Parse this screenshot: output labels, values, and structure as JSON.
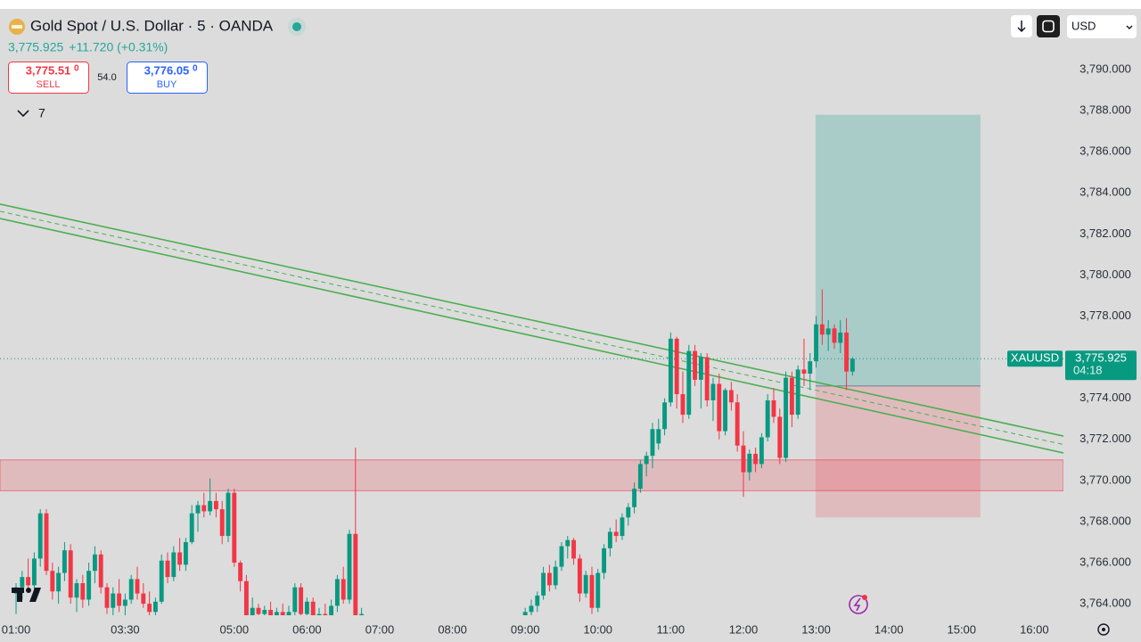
{
  "header": {
    "symbol": "Gold Spot / U.S. Dollar · 5 · OANDA",
    "price": "3,775.925",
    "change": "+11.720 (+0.31%)",
    "sell": {
      "price": "3,775.51",
      "pip": "0",
      "label": "SELL"
    },
    "spread": "54.0",
    "buy": {
      "price": "3,776.05",
      "pip": "0",
      "label": "BUY"
    },
    "indicators": "7",
    "currency": "USD"
  },
  "chart_data": {
    "type": "candlestick",
    "up_color": "#089981",
    "down_color": "#f23645",
    "xlim": [
      -2.65,
      172.8
    ],
    "ylim": [
      3763.44,
      3792.95
    ],
    "xticks": [
      {
        "value": 0,
        "label": "01:00"
      },
      {
        "value": 18,
        "label": "03:30"
      },
      {
        "value": 36,
        "label": "05:00"
      },
      {
        "value": 48,
        "label": "06:00"
      },
      {
        "value": 60,
        "label": "07:00"
      },
      {
        "value": 72,
        "label": "08:00"
      },
      {
        "value": 84,
        "label": "09:00"
      },
      {
        "value": 96,
        "label": "10:00"
      },
      {
        "value": 108,
        "label": "11:00"
      },
      {
        "value": 120,
        "label": "12:00"
      },
      {
        "value": 132,
        "label": "13:00"
      },
      {
        "value": 144,
        "label": "14:00"
      },
      {
        "value": 156,
        "label": "15:00"
      },
      {
        "value": 168,
        "label": "16:00"
      }
    ],
    "yticks": [
      {
        "value": 3764,
        "label": "3,764.000"
      },
      {
        "value": 3766,
        "label": "3,766.000"
      },
      {
        "value": 3768,
        "label": "3,768.000"
      },
      {
        "value": 3770,
        "label": "3,770.000"
      },
      {
        "value": 3772,
        "label": "3,772.000"
      },
      {
        "value": 3774,
        "label": "3,774.000"
      },
      {
        "value": 3776,
        "label": "3,776.000"
      },
      {
        "value": 3778,
        "label": "3,778.000"
      },
      {
        "value": 3780,
        "label": "3,780.000"
      },
      {
        "value": 3782,
        "label": "3,782.000"
      },
      {
        "value": 3784,
        "label": "3,784.000"
      },
      {
        "value": 3786,
        "label": "3,786.000"
      },
      {
        "value": 3788,
        "label": "3,788.000"
      },
      {
        "value": 3790,
        "label": "3,790.000"
      }
    ],
    "last_price": {
      "symbol": "XAUUSD",
      "value": 3775.925,
      "label": "3,775.925",
      "countdown": "04:18"
    },
    "channel_upper": {
      "x": [
        -2.65,
        172.8
      ],
      "y": [
        3783.45,
        3772.16
      ],
      "color": "#4caf50"
    },
    "channel_lower": {
      "x": [
        -2.65,
        172.8
      ],
      "y": [
        3782.75,
        3771.34
      ],
      "color": "#4caf50"
    },
    "zone": {
      "x": [
        -2.65,
        172.8
      ],
      "low": 3769.5,
      "high": 3771.0,
      "color": "#f23645"
    },
    "position": {
      "x": [
        131.9,
        159.1
      ],
      "entry": 3774.6,
      "target": 3787.8,
      "stop": 3768.2
    },
    "candles": [
      {
        "x": 0,
        "o": 3764.5,
        "h": 3765,
        "l": 3763.5,
        "c": 3764.8
      },
      {
        "x": 1,
        "o": 3764.8,
        "h": 3765.6,
        "l": 3764.2,
        "c": 3765.3
      },
      {
        "x": 2,
        "o": 3765.3,
        "h": 3766.2,
        "l": 3764.6,
        "c": 3764.9
      },
      {
        "x": 3,
        "o": 3764.9,
        "h": 3766.5,
        "l": 3764.5,
        "c": 3766.2
      },
      {
        "x": 4,
        "o": 3766.2,
        "h": 3768.6,
        "l": 3765.8,
        "c": 3768.4
      },
      {
        "x": 5,
        "o": 3768.4,
        "h": 3768.6,
        "l": 3765.4,
        "c": 3765.6
      },
      {
        "x": 6,
        "o": 3765.6,
        "h": 3766,
        "l": 3764.2,
        "c": 3764.6
      },
      {
        "x": 7,
        "o": 3764.6,
        "h": 3765.8,
        "l": 3764,
        "c": 3765.5
      },
      {
        "x": 8,
        "o": 3765.5,
        "h": 3767,
        "l": 3765.1,
        "c": 3766.6
      },
      {
        "x": 9,
        "o": 3766.6,
        "h": 3766.9,
        "l": 3764,
        "c": 3764.3
      },
      {
        "x": 10,
        "o": 3764.3,
        "h": 3765.2,
        "l": 3763.6,
        "c": 3765
      },
      {
        "x": 11,
        "o": 3765,
        "h": 3765.4,
        "l": 3763.8,
        "c": 3764.2
      },
      {
        "x": 12,
        "o": 3764.2,
        "h": 3766,
        "l": 3763.9,
        "c": 3765.6
      },
      {
        "x": 13,
        "o": 3765.6,
        "h": 3766.8,
        "l": 3765,
        "c": 3766.4
      },
      {
        "x": 14,
        "o": 3766.4,
        "h": 3766.6,
        "l": 3764.5,
        "c": 3764.8
      },
      {
        "x": 15,
        "o": 3764.8,
        "h": 3765,
        "l": 3763.5,
        "c": 3763.8
      },
      {
        "x": 16,
        "o": 3763.8,
        "h": 3764.8,
        "l": 3763.2,
        "c": 3764.5
      },
      {
        "x": 17,
        "o": 3764.5,
        "h": 3765.2,
        "l": 3763.6,
        "c": 3763.9
      },
      {
        "x": 18,
        "o": 3763.9,
        "h": 3764.5,
        "l": 3763.3,
        "c": 3764.2
      },
      {
        "x": 19,
        "o": 3764.2,
        "h": 3765.4,
        "l": 3764,
        "c": 3765.2
      },
      {
        "x": 20,
        "o": 3765.2,
        "h": 3765.8,
        "l": 3764.2,
        "c": 3764.5
      },
      {
        "x": 21,
        "o": 3764.5,
        "h": 3765,
        "l": 3763.8,
        "c": 3764
      },
      {
        "x": 22,
        "o": 3764,
        "h": 3764.6,
        "l": 3763.2,
        "c": 3763.6
      },
      {
        "x": 23,
        "o": 3763.6,
        "h": 3764.3,
        "l": 3763,
        "c": 3764.1
      },
      {
        "x": 24,
        "o": 3764.1,
        "h": 3766.4,
        "l": 3764,
        "c": 3766.1
      },
      {
        "x": 25,
        "o": 3766.1,
        "h": 3766.5,
        "l": 3765,
        "c": 3765.3
      },
      {
        "x": 26,
        "o": 3765.3,
        "h": 3766.8,
        "l": 3765.1,
        "c": 3766.5
      },
      {
        "x": 27,
        "o": 3766.5,
        "h": 3767.2,
        "l": 3765.6,
        "c": 3765.9
      },
      {
        "x": 28,
        "o": 3765.9,
        "h": 3767.2,
        "l": 3765.6,
        "c": 3767
      },
      {
        "x": 29,
        "o": 3767,
        "h": 3768.8,
        "l": 3766.9,
        "c": 3768.4
      },
      {
        "x": 30,
        "o": 3768.4,
        "h": 3769,
        "l": 3767.5,
        "c": 3768.8
      },
      {
        "x": 31,
        "o": 3768.8,
        "h": 3769.4,
        "l": 3768.2,
        "c": 3768.5
      },
      {
        "x": 32,
        "o": 3768.5,
        "h": 3770.1,
        "l": 3768.3,
        "c": 3769
      },
      {
        "x": 33,
        "o": 3769,
        "h": 3769.4,
        "l": 3768.2,
        "c": 3768.6
      },
      {
        "x": 34,
        "o": 3768.6,
        "h": 3769,
        "l": 3766.9,
        "c": 3767.3
      },
      {
        "x": 35,
        "o": 3767.3,
        "h": 3769.6,
        "l": 3767,
        "c": 3769.4
      },
      {
        "x": 36,
        "o": 3769.4,
        "h": 3769.6,
        "l": 3765.8,
        "c": 3766
      },
      {
        "x": 37,
        "o": 3766,
        "h": 3766.1,
        "l": 3764.6,
        "c": 3765.1
      },
      {
        "x": 38,
        "o": 3765.1,
        "h": 3765.4,
        "l": 3763.1,
        "c": 3763.4
      },
      {
        "x": 39,
        "o": 3763.4,
        "h": 3764.3,
        "l": 3763,
        "c": 3763.8
      },
      {
        "x": 40,
        "o": 3763.8,
        "h": 3764,
        "l": 3763.1,
        "c": 3763.5
      },
      {
        "x": 41,
        "o": 3763.5,
        "h": 3763.9,
        "l": 3763,
        "c": 3763.7
      },
      {
        "x": 42,
        "o": 3763.7,
        "h": 3764.1,
        "l": 3763.2,
        "c": 3763.4
      },
      {
        "x": 43,
        "o": 3763.4,
        "h": 3763.8,
        "l": 3763,
        "c": 3763.6
      },
      {
        "x": 44,
        "o": 3763.6,
        "h": 3764,
        "l": 3763.1,
        "c": 3763.3
      },
      {
        "x": 45,
        "o": 3763.3,
        "h": 3763.9,
        "l": 3763,
        "c": 3763.6
      },
      {
        "x": 46,
        "o": 3763.6,
        "h": 3765,
        "l": 3763.4,
        "c": 3764.8
      },
      {
        "x": 47,
        "o": 3764.8,
        "h": 3765,
        "l": 3763.2,
        "c": 3763.5
      },
      {
        "x": 48,
        "o": 3763.5,
        "h": 3764.3,
        "l": 3763.1,
        "c": 3764.1
      },
      {
        "x": 49,
        "o": 3764.1,
        "h": 3764.3,
        "l": 3763,
        "c": 3763.3
      },
      {
        "x": 50,
        "o": 3763.3,
        "h": 3763.8,
        "l": 3763,
        "c": 3763.5
      },
      {
        "x": 51,
        "o": 3763.5,
        "h": 3764,
        "l": 3763,
        "c": 3763.2
      },
      {
        "x": 52,
        "o": 3763.2,
        "h": 3764.2,
        "l": 3763,
        "c": 3763.9
      },
      {
        "x": 53,
        "o": 3763.9,
        "h": 3765.4,
        "l": 3763.6,
        "c": 3765.2
      },
      {
        "x": 54,
        "o": 3765.2,
        "h": 3765.8,
        "l": 3764,
        "c": 3764.2
      },
      {
        "x": 55,
        "o": 3764.2,
        "h": 3767.6,
        "l": 3764,
        "c": 3767.4
      },
      {
        "x": 56,
        "o": 3767.4,
        "h": 3771.6,
        "l": 3763.2,
        "c": 3763.4
      },
      {
        "x": 57,
        "o": 3763.4,
        "h": 3763.8,
        "l": 3763,
        "c": 3763.5
      },
      {
        "x": 84,
        "o": 3763.2,
        "h": 3763.8,
        "l": 3763,
        "c": 3763.6
      },
      {
        "x": 85,
        "o": 3763.6,
        "h": 3764.2,
        "l": 3763.4,
        "c": 3763.9
      },
      {
        "x": 86,
        "o": 3763.9,
        "h": 3764.6,
        "l": 3763.6,
        "c": 3764.4
      },
      {
        "x": 87,
        "o": 3764.4,
        "h": 3765.8,
        "l": 3764.2,
        "c": 3765.5
      },
      {
        "x": 88,
        "o": 3765.5,
        "h": 3765.9,
        "l": 3764.6,
        "c": 3764.9
      },
      {
        "x": 89,
        "o": 3764.9,
        "h": 3766.1,
        "l": 3764.7,
        "c": 3765.8
      },
      {
        "x": 90,
        "o": 3765.8,
        "h": 3767,
        "l": 3765.6,
        "c": 3766.8
      },
      {
        "x": 91,
        "o": 3766.8,
        "h": 3767.3,
        "l": 3766.2,
        "c": 3767.1
      },
      {
        "x": 92,
        "o": 3767.1,
        "h": 3767.2,
        "l": 3765.9,
        "c": 3766.2
      },
      {
        "x": 93,
        "o": 3766.2,
        "h": 3766.4,
        "l": 3764.1,
        "c": 3764.5
      },
      {
        "x": 94,
        "o": 3764.5,
        "h": 3765.6,
        "l": 3764.3,
        "c": 3765.4
      },
      {
        "x": 95,
        "o": 3765.4,
        "h": 3765.8,
        "l": 3763.5,
        "c": 3763.8
      },
      {
        "x": 96,
        "o": 3763.8,
        "h": 3765.7,
        "l": 3763.6,
        "c": 3765.5
      },
      {
        "x": 97,
        "o": 3765.5,
        "h": 3766.9,
        "l": 3765.2,
        "c": 3766.7
      },
      {
        "x": 98,
        "o": 3766.7,
        "h": 3767.7,
        "l": 3766.3,
        "c": 3767.5
      },
      {
        "x": 99,
        "o": 3767.5,
        "h": 3768.1,
        "l": 3767,
        "c": 3767.3
      },
      {
        "x": 100,
        "o": 3767.3,
        "h": 3768.4,
        "l": 3767.1,
        "c": 3768.2
      },
      {
        "x": 101,
        "o": 3768.2,
        "h": 3768.9,
        "l": 3767.8,
        "c": 3768.7
      },
      {
        "x": 102,
        "o": 3768.7,
        "h": 3769.9,
        "l": 3768.4,
        "c": 3769.6
      },
      {
        "x": 103,
        "o": 3769.6,
        "h": 3771,
        "l": 3769.4,
        "c": 3770.8
      },
      {
        "x": 104,
        "o": 3770.8,
        "h": 3771.4,
        "l": 3770.2,
        "c": 3771.2
      },
      {
        "x": 105,
        "o": 3771.2,
        "h": 3772.8,
        "l": 3770.6,
        "c": 3772.5
      },
      {
        "x": 106,
        "o": 3771.8,
        "h": 3773,
        "l": 3771.5,
        "c": 3772.5
      },
      {
        "x": 107,
        "o": 3772.5,
        "h": 3774,
        "l": 3772.2,
        "c": 3773.8
      },
      {
        "x": 108,
        "o": 3773.8,
        "h": 3777.2,
        "l": 3773.6,
        "c": 3776.9
      },
      {
        "x": 109,
        "o": 3776.9,
        "h": 3777,
        "l": 3773.5,
        "c": 3774.2
      },
      {
        "x": 110,
        "o": 3774.2,
        "h": 3775.3,
        "l": 3772.8,
        "c": 3773.2
      },
      {
        "x": 111,
        "o": 3773.2,
        "h": 3776.6,
        "l": 3773,
        "c": 3776.3
      },
      {
        "x": 112,
        "o": 3776.3,
        "h": 3776.6,
        "l": 3774.6,
        "c": 3774.9
      },
      {
        "x": 113,
        "o": 3774.9,
        "h": 3776.2,
        "l": 3773.5,
        "c": 3776
      },
      {
        "x": 114,
        "o": 3776,
        "h": 3776.2,
        "l": 3773.6,
        "c": 3773.9
      },
      {
        "x": 115,
        "o": 3773.9,
        "h": 3775,
        "l": 3772.9,
        "c": 3774.7
      },
      {
        "x": 116,
        "o": 3774.7,
        "h": 3775.2,
        "l": 3772,
        "c": 3772.4
      },
      {
        "x": 117,
        "o": 3772.4,
        "h": 3774.5,
        "l": 3772.2,
        "c": 3774.4
      },
      {
        "x": 118,
        "o": 3774.4,
        "h": 3774.8,
        "l": 3773.4,
        "c": 3773.8
      },
      {
        "x": 119,
        "o": 3773.8,
        "h": 3774.2,
        "l": 3771.4,
        "c": 3771.7
      },
      {
        "x": 120,
        "o": 3771.7,
        "h": 3772.4,
        "l": 3769.2,
        "c": 3770.4
      },
      {
        "x": 121,
        "o": 3770.4,
        "h": 3771.5,
        "l": 3770,
        "c": 3771.3
      },
      {
        "x": 122,
        "o": 3771.3,
        "h": 3771.6,
        "l": 3770.4,
        "c": 3770.8
      },
      {
        "x": 123,
        "o": 3770.8,
        "h": 3772.3,
        "l": 3770.6,
        "c": 3772.1
      },
      {
        "x": 124,
        "o": 3772.1,
        "h": 3774.2,
        "l": 3771.9,
        "c": 3773.9
      },
      {
        "x": 125,
        "o": 3773.9,
        "h": 3774.5,
        "l": 3772.8,
        "c": 3773.1
      },
      {
        "x": 126,
        "o": 3773.1,
        "h": 3773.5,
        "l": 3770.8,
        "c": 3771.1
      },
      {
        "x": 127,
        "o": 3771.1,
        "h": 3775.3,
        "l": 3770.9,
        "c": 3775
      },
      {
        "x": 128,
        "o": 3775,
        "h": 3775.3,
        "l": 3772.6,
        "c": 3773.2
      },
      {
        "x": 129,
        "o": 3773.2,
        "h": 3775.6,
        "l": 3773,
        "c": 3775.4
      },
      {
        "x": 130,
        "o": 3775.4,
        "h": 3776.9,
        "l": 3774.6,
        "c": 3775.2
      },
      {
        "x": 131,
        "o": 3775.2,
        "h": 3776.2,
        "l": 3774.4,
        "c": 3775.8
      },
      {
        "x": 132,
        "o": 3775.8,
        "h": 3778,
        "l": 3775.5,
        "c": 3777.6
      },
      {
        "x": 133,
        "o": 3777.6,
        "h": 3779.3,
        "l": 3776.6,
        "c": 3777.1
      },
      {
        "x": 134,
        "o": 3777.1,
        "h": 3777.8,
        "l": 3776.3,
        "c": 3777.4
      },
      {
        "x": 135,
        "o": 3777.4,
        "h": 3777.6,
        "l": 3776.4,
        "c": 3776.7
      },
      {
        "x": 136,
        "o": 3776.7,
        "h": 3777.8,
        "l": 3776.2,
        "c": 3777.2
      },
      {
        "x": 137,
        "o": 3777.2,
        "h": 3777.9,
        "l": 3774.4,
        "c": 3775.3
      },
      {
        "x": 138,
        "o": 3775.3,
        "h": 3776,
        "l": 3775.1,
        "c": 3775.925
      }
    ]
  }
}
